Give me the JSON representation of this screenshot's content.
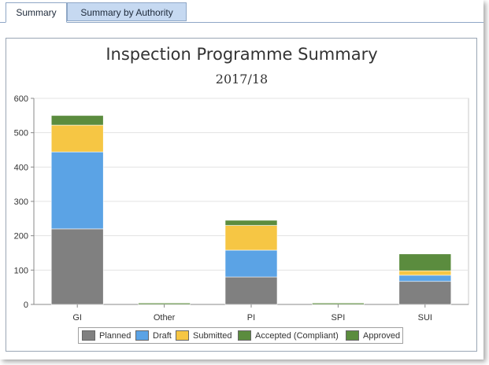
{
  "tabs": [
    {
      "label": "Summary",
      "active": true
    },
    {
      "label": "Summary by Authority",
      "active": false
    }
  ],
  "chart_data": {
    "type": "bar",
    "stacked": true,
    "title": "Inspection Programme Summary",
    "subtitle": "2017/18",
    "categories": [
      "GI",
      "Other",
      "PI",
      "SPI",
      "SUI"
    ],
    "ylim": [
      0,
      600
    ],
    "yticks": [
      0,
      100,
      200,
      300,
      400,
      500,
      600
    ],
    "grid": true,
    "legend_position": "bottom",
    "series": [
      {
        "name": "Planned",
        "color": "#808080",
        "values": [
          220,
          0,
          80,
          0,
          67
        ]
      },
      {
        "name": "Draft",
        "color": "#5ba3e5",
        "values": [
          224,
          0,
          78,
          0,
          18
        ]
      },
      {
        "name": "Submitted",
        "color": "#f6c644",
        "values": [
          78,
          0,
          72,
          0,
          13
        ]
      },
      {
        "name": "Accepted (Compliant)",
        "color": "#5b8c3e",
        "values": [
          0,
          0,
          0,
          0,
          0
        ]
      },
      {
        "name": "Approved",
        "color": "#5b8c3e",
        "values": [
          28,
          4,
          15,
          4,
          49
        ]
      }
    ]
  }
}
